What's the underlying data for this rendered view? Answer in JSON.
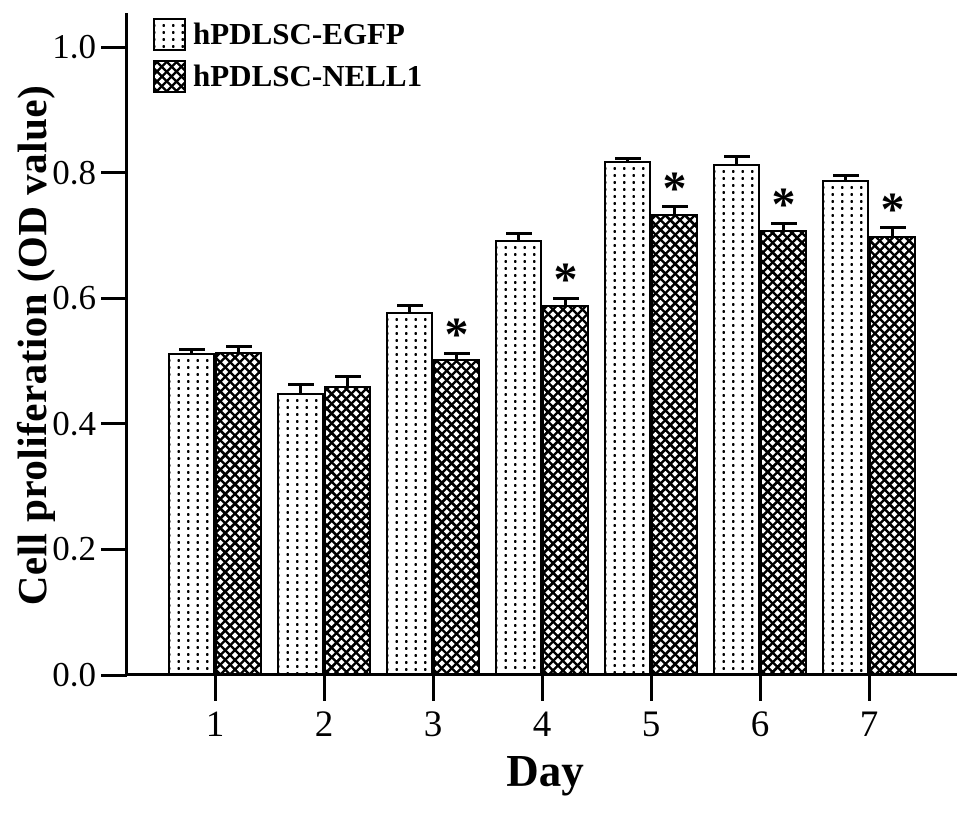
{
  "figure": {
    "background": "#ffffff",
    "ink_color": "#000000"
  },
  "chart_data": {
    "type": "bar",
    "title": "",
    "xlabel": "Day",
    "ylabel": "Cell proliferation (OD value)",
    "categories": [
      "1",
      "2",
      "3",
      "4",
      "5",
      "6",
      "7"
    ],
    "ylim": [
      0.0,
      1.05
    ],
    "yticks": [
      0.0,
      0.2,
      0.4,
      0.6,
      0.8,
      1.0
    ],
    "grid": false,
    "legend_position": "top-left",
    "significance_marker": "*",
    "series": [
      {
        "name": "hPDLSC-EGFP",
        "pattern": "vertical-dots",
        "values": [
          0.513,
          0.449,
          0.578,
          0.693,
          0.818,
          0.814,
          0.788
        ],
        "errors": [
          0.005,
          0.013,
          0.01,
          0.01,
          0.004,
          0.012,
          0.008
        ],
        "significant": [
          false,
          false,
          false,
          false,
          false,
          false,
          false
        ]
      },
      {
        "name": "hPDLSC-NELL1",
        "pattern": "crosshatch",
        "values": [
          0.515,
          0.46,
          0.503,
          0.589,
          0.734,
          0.708,
          0.699
        ],
        "errors": [
          0.008,
          0.015,
          0.009,
          0.011,
          0.012,
          0.011,
          0.013
        ],
        "significant": [
          false,
          false,
          true,
          true,
          true,
          true,
          true
        ]
      }
    ]
  }
}
